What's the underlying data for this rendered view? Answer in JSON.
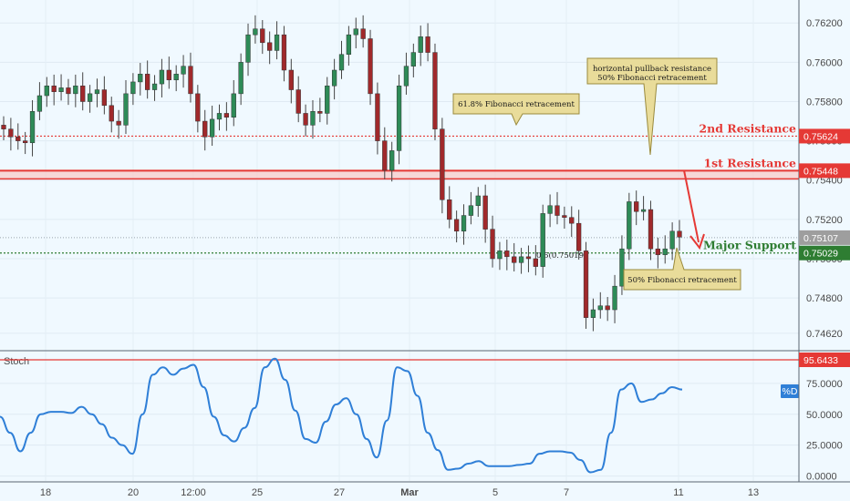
{
  "chart_data": [
    {
      "type": "candlestick",
      "title": "",
      "x_ticks": [
        "18",
        "20",
        "12:00",
        "25",
        "27",
        "Mar",
        "5",
        "7",
        "11",
        "13"
      ],
      "y_ticks": [
        0.7462,
        0.748,
        0.75,
        0.752,
        0.754,
        0.756,
        0.758,
        0.76,
        0.762
      ],
      "y_tick_labels": [
        "0.74620",
        "0.74800",
        "0.75000",
        "0.75200",
        "0.75400",
        "0.75600",
        "0.75800",
        "0.76000",
        "0.76200"
      ],
      "ylim": [
        0.7455,
        0.7628
      ],
      "levels": [
        {
          "name": "2nd Resistance",
          "value": 0.75624,
          "tag": "0.75624",
          "color": "#e53935",
          "style": "dotted"
        },
        {
          "name": "1st Resistance",
          "value": 0.75448,
          "tag": "0.75448",
          "color": "#e53935",
          "style": "band"
        },
        {
          "name": "Major Support",
          "value": 0.75029,
          "tag": "0.75029",
          "color": "#2e7d32",
          "style": "dotted"
        }
      ],
      "last_price": {
        "value": 0.75107,
        "tag": "0.75107",
        "color": "#9e9e9e"
      },
      "fib_label": "0.5(0.75019)",
      "annotations": [
        {
          "id": "fib618",
          "text": [
            "61.8% Fibonacci retracement"
          ]
        },
        {
          "id": "pullback",
          "text": [
            "horizontal pullback resistance",
            "50% Fibonacci retracement"
          ]
        },
        {
          "id": "fib50",
          "text": [
            "50% Fibonacci retracement"
          ]
        }
      ],
      "closes": [
        0.7566,
        0.7562,
        0.756,
        0.7559,
        0.7575,
        0.7583,
        0.7588,
        0.7585,
        0.7587,
        0.7584,
        0.7588,
        0.758,
        0.7584,
        0.7586,
        0.7578,
        0.757,
        0.7568,
        0.7584,
        0.759,
        0.7594,
        0.7586,
        0.7589,
        0.7596,
        0.7591,
        0.7594,
        0.7598,
        0.7584,
        0.757,
        0.7562,
        0.7571,
        0.7574,
        0.7572,
        0.7584,
        0.76,
        0.7614,
        0.7617,
        0.761,
        0.7606,
        0.7614,
        0.7596,
        0.7586,
        0.7574,
        0.7568,
        0.7575,
        0.7574,
        0.7588,
        0.7596,
        0.7604,
        0.7614,
        0.7617,
        0.7612,
        0.7584,
        0.756,
        0.7545,
        0.7555,
        0.7588,
        0.7598,
        0.7605,
        0.7613,
        0.7605,
        0.7566,
        0.753,
        0.752,
        0.7514,
        0.7522,
        0.7527,
        0.7532,
        0.7515,
        0.75,
        0.7504,
        0.7501,
        0.7498,
        0.7501,
        0.75,
        0.7496,
        0.7523,
        0.7527,
        0.7522,
        0.7521,
        0.7518,
        0.7504,
        0.747,
        0.7474,
        0.7476,
        0.7474,
        0.7486,
        0.7505,
        0.7529,
        0.7524,
        0.7525,
        0.7505,
        0.7502,
        0.7505,
        0.7514,
        0.7511
      ],
      "oscillator": {
        "name": "Stoch",
        "series_label": "%D",
        "y_ticks": [
          0,
          25,
          50,
          75
        ],
        "y_tick_labels": [
          "0.0000",
          "25.0000",
          "50.0000",
          "75.0000"
        ],
        "ylim": [
          -4,
          100
        ],
        "level": {
          "value": 95.6433,
          "tag": "95.6433",
          "color": "#e53935"
        },
        "color": "#2f7fd7",
        "values": [
          48,
          35,
          20,
          35,
          50,
          52,
          52,
          51,
          56,
          50,
          42,
          31,
          25,
          18,
          50,
          82,
          88,
          82,
          87,
          90,
          72,
          48,
          33,
          28,
          39,
          55,
          88,
          95,
          78,
          53,
          30,
          27,
          44,
          58,
          63,
          50,
          30,
          15,
          45,
          88,
          85,
          65,
          35,
          21,
          5,
          6,
          10,
          12,
          8,
          8,
          8,
          9,
          10,
          18,
          20,
          20,
          19,
          13,
          3,
          5,
          35,
          70,
          75,
          60,
          62,
          67,
          72,
          70
        ]
      }
    }
  ]
}
